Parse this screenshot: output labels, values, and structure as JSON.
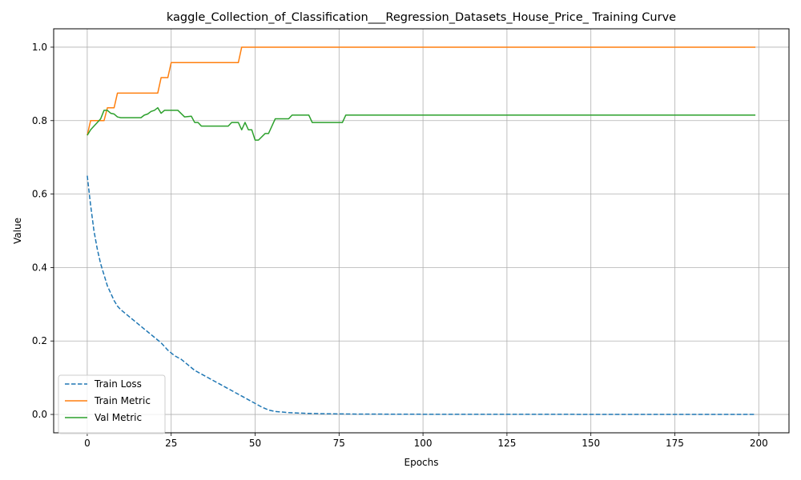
{
  "chart_data": {
    "type": "line",
    "title": "kaggle_Collection_of_Classification___Regression_Datasets_House_Price_ Training Curve",
    "xlabel": "Epochs",
    "ylabel": "Value",
    "xlim": [
      -10,
      209
    ],
    "ylim": [
      -0.05,
      1.05
    ],
    "xticks": [
      0,
      25,
      50,
      75,
      100,
      125,
      150,
      175,
      200
    ],
    "yticks": [
      0.0,
      0.2,
      0.4,
      0.6,
      0.8,
      1.0
    ],
    "xtick_labels": [
      "0",
      "25",
      "50",
      "75",
      "100",
      "125",
      "150",
      "175",
      "200"
    ],
    "ytick_labels": [
      "0.0",
      "0.2",
      "0.4",
      "0.6",
      "0.8",
      "1.0"
    ],
    "grid": true,
    "legend_position": "lower-left",
    "series": [
      {
        "name": "Train Loss",
        "color": "#1f77b4",
        "style": "dashed",
        "points": [
          [
            0,
            0.65
          ],
          [
            1,
            0.57
          ],
          [
            2,
            0.5
          ],
          [
            3,
            0.45
          ],
          [
            4,
            0.41
          ],
          [
            5,
            0.38
          ],
          [
            6,
            0.35
          ],
          [
            7,
            0.33
          ],
          [
            8,
            0.31
          ],
          [
            9,
            0.295
          ],
          [
            10,
            0.285
          ],
          [
            12,
            0.27
          ],
          [
            14,
            0.255
          ],
          [
            16,
            0.24
          ],
          [
            18,
            0.225
          ],
          [
            20,
            0.21
          ],
          [
            22,
            0.195
          ],
          [
            24,
            0.175
          ],
          [
            26,
            0.16
          ],
          [
            28,
            0.15
          ],
          [
            30,
            0.135
          ],
          [
            32,
            0.12
          ],
          [
            34,
            0.11
          ],
          [
            36,
            0.1
          ],
          [
            38,
            0.09
          ],
          [
            40,
            0.08
          ],
          [
            42,
            0.07
          ],
          [
            44,
            0.06
          ],
          [
            46,
            0.05
          ],
          [
            48,
            0.04
          ],
          [
            50,
            0.03
          ],
          [
            52,
            0.02
          ],
          [
            54,
            0.012
          ],
          [
            56,
            0.008
          ],
          [
            60,
            0.005
          ],
          [
            65,
            0.003
          ],
          [
            70,
            0.002
          ],
          [
            80,
            0.001
          ],
          [
            100,
            0.0005
          ],
          [
            150,
            0.0002
          ],
          [
            199,
            0.0001
          ]
        ]
      },
      {
        "name": "Train Metric",
        "color": "#ff7f0e",
        "style": "solid",
        "points": [
          [
            0,
            0.76
          ],
          [
            1,
            0.8
          ],
          [
            2,
            0.8
          ],
          [
            5,
            0.8
          ],
          [
            6,
            0.835
          ],
          [
            8,
            0.835
          ],
          [
            9,
            0.875
          ],
          [
            21,
            0.875
          ],
          [
            22,
            0.917
          ],
          [
            24,
            0.917
          ],
          [
            25,
            0.958
          ],
          [
            45,
            0.958
          ],
          [
            46,
            1.0
          ],
          [
            199,
            1.0
          ]
        ]
      },
      {
        "name": "Val Metric",
        "color": "#2ca02c",
        "style": "solid",
        "points": [
          [
            0,
            0.76
          ],
          [
            1,
            0.775
          ],
          [
            2,
            0.785
          ],
          [
            3,
            0.795
          ],
          [
            4,
            0.805
          ],
          [
            5,
            0.828
          ],
          [
            6,
            0.828
          ],
          [
            7,
            0.82
          ],
          [
            8,
            0.818
          ],
          [
            9,
            0.81
          ],
          [
            10,
            0.808
          ],
          [
            16,
            0.808
          ],
          [
            17,
            0.815
          ],
          [
            18,
            0.818
          ],
          [
            19,
            0.825
          ],
          [
            20,
            0.828
          ],
          [
            21,
            0.835
          ],
          [
            22,
            0.82
          ],
          [
            23,
            0.828
          ],
          [
            27,
            0.828
          ],
          [
            29,
            0.81
          ],
          [
            31,
            0.812
          ],
          [
            32,
            0.795
          ],
          [
            33,
            0.795
          ],
          [
            34,
            0.785
          ],
          [
            42,
            0.785
          ],
          [
            43,
            0.795
          ],
          [
            45,
            0.795
          ],
          [
            46,
            0.775
          ],
          [
            47,
            0.795
          ],
          [
            48,
            0.775
          ],
          [
            49,
            0.775
          ],
          [
            50,
            0.747
          ],
          [
            51,
            0.747
          ],
          [
            53,
            0.765
          ],
          [
            54,
            0.765
          ],
          [
            56,
            0.805
          ],
          [
            60,
            0.805
          ],
          [
            61,
            0.815
          ],
          [
            66,
            0.815
          ],
          [
            67,
            0.795
          ],
          [
            76,
            0.795
          ],
          [
            77,
            0.815
          ],
          [
            199,
            0.815
          ]
        ]
      }
    ]
  }
}
